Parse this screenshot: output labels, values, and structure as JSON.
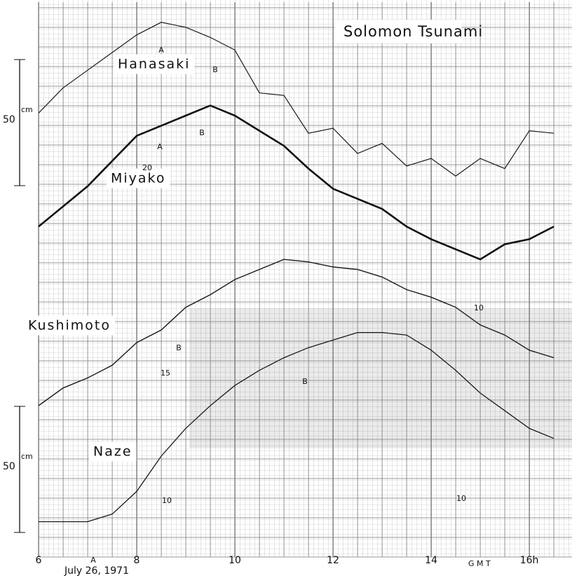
{
  "chart_data": {
    "type": "line",
    "title": "Solomon Tsunami",
    "xlabel": "G M T",
    "date": "July 26, 1971",
    "x": [
      6,
      6.5,
      7,
      7.5,
      8,
      8.5,
      9,
      9.5,
      10,
      10.5,
      11,
      11.5,
      12,
      12.5,
      13,
      13.5,
      14,
      14.5,
      15,
      15.5,
      16,
      16.5
    ],
    "xlim": [
      6,
      16.87
    ],
    "xticks": [
      6,
      8,
      10,
      12,
      14,
      {
        "value": 16,
        "label": "16h"
      }
    ],
    "ylim": [
      0,
      220
    ],
    "grid": true,
    "series": [
      {
        "name": "Hanasaki",
        "color": "#1a1a1a",
        "values": [
          176,
          186,
          193,
          200,
          207,
          212,
          210,
          206,
          201,
          184,
          183,
          168,
          170,
          160,
          164,
          155,
          158,
          151,
          158,
          154,
          169,
          168
        ]
      },
      {
        "name": "Miyako",
        "color": "#111111",
        "values": [
          131,
          139,
          147,
          157,
          167,
          171,
          175,
          179,
          175,
          169,
          163,
          154,
          146,
          142,
          138,
          131,
          126,
          122,
          118,
          124,
          126,
          131
        ]
      },
      {
        "name": "Kushimoto",
        "color": "#1a1a1a",
        "values": [
          60,
          67,
          71,
          76,
          85,
          90,
          99,
          104,
          110,
          114,
          118,
          117,
          115,
          114,
          111,
          106,
          103,
          99,
          92,
          88,
          82,
          79
        ]
      },
      {
        "name": "Naze",
        "color": "#1a1a1a",
        "values": [
          14,
          14,
          14,
          17,
          26,
          40,
          51,
          60,
          68,
          74,
          79,
          83,
          86,
          89,
          89,
          88,
          82,
          74,
          65,
          58,
          51,
          47
        ]
      }
    ],
    "scale_bars": [
      {
        "value": 50,
        "unit": "cm"
      },
      {
        "value": 50,
        "unit": "cm"
      }
    ],
    "annotations": [
      "A",
      "B",
      "A",
      "B",
      "20",
      "B",
      "15",
      "B",
      "A",
      "10",
      "10",
      "10"
    ]
  }
}
